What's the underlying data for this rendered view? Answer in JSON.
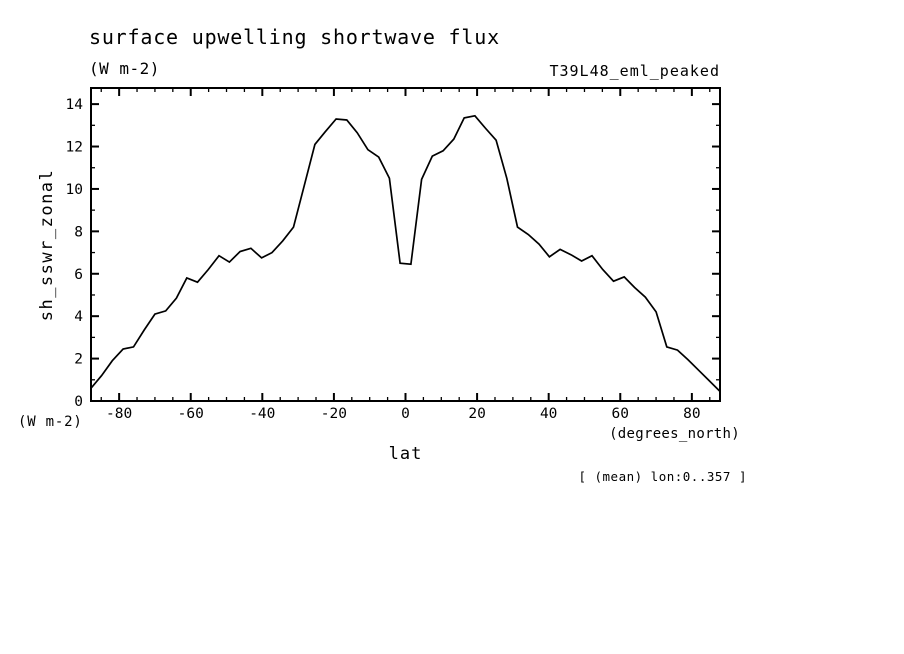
{
  "title": "surface upwelling shortwave flux",
  "units_label": "(W m-2)",
  "dataset_label": "T39L48_eml_peaked",
  "y_axis": {
    "label": "sh_sswr_zonal",
    "units_label": "(W m-2)"
  },
  "x_axis": {
    "label": "lat",
    "units_label": "(degrees_north)"
  },
  "mean_annotation": "[ (mean) lon:0..357 ]",
  "colors": {
    "background": "#ffffff",
    "line": "#000000",
    "text": "#000000"
  },
  "chart_data": {
    "type": "line",
    "title": "surface upwelling shortwave flux",
    "xlabel": "lat",
    "ylabel": "sh_sswr_zonal",
    "x_units": "degrees_north",
    "y_units": "W m-2",
    "xlim": [
      -87.86,
      87.86
    ],
    "ylim": [
      0,
      14.76
    ],
    "x_major_ticks": [
      -80,
      -60,
      -40,
      -20,
      0,
      20,
      40,
      60,
      80
    ],
    "x_minor_tick_step": 5,
    "y_major_ticks": [
      0,
      2,
      4,
      6,
      8,
      10,
      12,
      14
    ],
    "y_minor_tick_step": 1,
    "grid": false,
    "legend": null,
    "series": [
      {
        "name": "sh_sswr_zonal (zonal mean over lon 0..357)",
        "x": [
          -87.9,
          -84.9,
          -81.9,
          -78.9,
          -76.0,
          -73.0,
          -70.0,
          -67.0,
          -64.0,
          -61.1,
          -58.1,
          -55.1,
          -52.1,
          -49.2,
          -46.2,
          -43.2,
          -40.2,
          -37.3,
          -34.3,
          -31.3,
          -28.3,
          -25.3,
          -22.4,
          -19.4,
          -16.4,
          -13.5,
          -10.5,
          -7.5,
          -4.5,
          -1.5,
          1.5,
          4.5,
          7.5,
          10.5,
          13.5,
          16.4,
          19.4,
          22.4,
          25.3,
          28.3,
          31.3,
          34.3,
          37.3,
          40.2,
          43.2,
          46.2,
          49.2,
          52.1,
          55.1,
          58.1,
          61.1,
          64.0,
          67.0,
          70.0,
          73.0,
          76.0,
          78.9,
          81.9,
          84.9,
          87.9
        ],
        "y": [
          0.6,
          1.2,
          1.9,
          2.45,
          2.55,
          3.35,
          4.1,
          4.25,
          4.85,
          5.8,
          5.6,
          6.2,
          6.85,
          6.55,
          7.05,
          7.2,
          6.75,
          7.0,
          7.55,
          8.2,
          10.15,
          12.1,
          12.7,
          13.3,
          13.25,
          12.65,
          11.85,
          11.5,
          10.5,
          6.5,
          6.45,
          10.45,
          11.55,
          11.8,
          12.35,
          13.35,
          13.45,
          12.85,
          12.3,
          10.5,
          8.2,
          7.85,
          7.4,
          6.8,
          7.15,
          6.9,
          6.6,
          6.85,
          6.2,
          5.65,
          5.85,
          5.35,
          4.9,
          4.2,
          2.55,
          2.4,
          1.95,
          1.45,
          0.95,
          0.45
        ]
      }
    ]
  }
}
